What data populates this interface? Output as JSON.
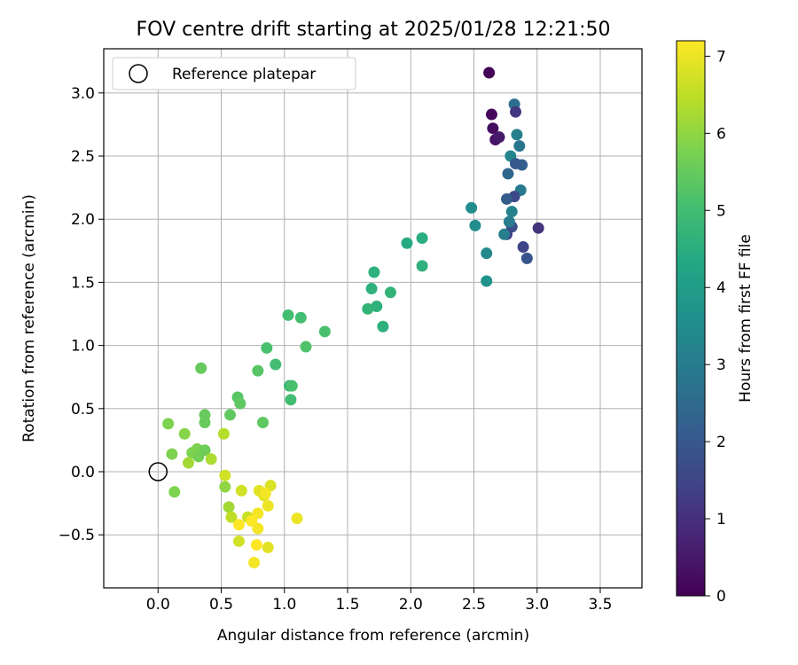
{
  "chart_data": {
    "type": "scatter",
    "title": "FOV centre drift starting at 2025/01/28 12:21:50",
    "xlabel": "Angular distance from reference (arcmin)",
    "ylabel": "Rotation from reference (arcmin)",
    "xlim": [
      -0.43,
      3.83
    ],
    "ylim": [
      -0.92,
      3.35
    ],
    "x_ticks": [
      "0.0",
      "0.5",
      "1.0",
      "1.5",
      "2.0",
      "2.5",
      "3.0",
      "3.5"
    ],
    "y_ticks": [
      "−0.5",
      "0.0",
      "0.5",
      "1.0",
      "1.5",
      "2.0",
      "2.5",
      "3.0"
    ],
    "grid": true,
    "legend": {
      "placement": "top-left",
      "entries": [
        "Reference platepar"
      ]
    },
    "colorbar": {
      "label": "Hours from first FF file",
      "range": [
        0,
        7.2
      ],
      "ticks": [
        "0",
        "1",
        "2",
        "3",
        "4",
        "5",
        "6",
        "7"
      ],
      "colormap": "viridis"
    },
    "reference_point": {
      "x": 0.0,
      "y": 0.0
    },
    "series": [
      {
        "x": [
          2.62,
          2.64,
          2.65,
          2.67,
          2.7,
          2.82,
          2.83,
          2.84,
          2.86,
          2.79,
          2.88,
          2.83,
          2.77,
          2.87,
          2.82,
          2.76,
          2.8,
          2.76,
          2.8,
          2.78,
          2.74,
          3.01,
          2.89,
          2.92,
          2.48,
          2.51,
          2.6,
          2.6,
          1.97,
          2.09,
          2.09,
          1.71,
          1.69,
          1.73,
          1.66,
          1.84,
          1.78,
          1.03,
          1.13,
          1.32,
          0.86,
          1.17,
          0.93,
          1.04,
          1.06,
          1.05,
          0.79,
          0.34,
          0.63,
          0.65,
          0.57,
          0.37,
          0.37,
          0.83,
          0.08,
          0.21,
          0.11,
          0.27,
          0.31,
          0.32,
          0.37,
          0.24,
          0.42,
          0.52,
          0.13,
          0.53,
          0.53,
          0.66,
          0.56,
          0.58,
          0.71,
          0.8,
          0.84,
          0.87,
          0.89,
          0.79,
          0.74,
          0.85,
          1.1,
          0.79,
          0.64,
          0.78,
          0.76,
          0.87,
          0.64
        ],
        "y": [
          3.16,
          2.83,
          2.72,
          2.63,
          2.65,
          2.91,
          2.85,
          2.67,
          2.58,
          2.5,
          2.43,
          2.44,
          2.36,
          2.23,
          2.18,
          2.16,
          1.94,
          1.88,
          2.06,
          1.98,
          1.88,
          1.93,
          1.78,
          1.69,
          2.09,
          1.95,
          1.73,
          1.51,
          1.81,
          1.85,
          1.63,
          1.58,
          1.45,
          1.31,
          1.29,
          1.42,
          1.15,
          1.24,
          1.22,
          1.11,
          0.98,
          0.99,
          0.85,
          0.68,
          0.68,
          0.57,
          0.8,
          0.82,
          0.59,
          0.54,
          0.45,
          0.45,
          0.39,
          0.39,
          0.38,
          0.3,
          0.14,
          0.15,
          0.18,
          0.12,
          0.17,
          0.07,
          0.1,
          0.3,
          -0.16,
          -0.03,
          -0.12,
          -0.15,
          -0.28,
          -0.36,
          -0.36,
          -0.15,
          -0.19,
          -0.27,
          -0.11,
          -0.33,
          -0.39,
          -0.17,
          -0.37,
          -0.45,
          -0.42,
          -0.58,
          -0.72,
          -0.6,
          -0.55
        ],
        "hours": [
          0.05,
          0.15,
          0.25,
          0.35,
          0.5,
          2.6,
          1.2,
          3.1,
          2.8,
          3.3,
          2.2,
          2.0,
          2.4,
          2.9,
          1.6,
          2.1,
          1.7,
          1.3,
          3.2,
          3.0,
          3.1,
          1.1,
          1.5,
          1.9,
          3.5,
          3.5,
          3.4,
          3.7,
          4.4,
          4.5,
          4.6,
          4.6,
          4.6,
          4.6,
          4.7,
          4.7,
          4.6,
          5.0,
          5.0,
          5.1,
          5.1,
          5.2,
          5.0,
          4.9,
          5.1,
          5.0,
          5.3,
          5.5,
          5.3,
          5.4,
          5.4,
          5.5,
          5.5,
          5.4,
          5.8,
          5.9,
          5.8,
          5.8,
          5.8,
          5.7,
          5.6,
          6.2,
          6.3,
          6.4,
          5.8,
          6.7,
          6.0,
          6.7,
          6.2,
          6.5,
          6.6,
          6.9,
          6.9,
          7.0,
          6.8,
          7.1,
          7.2,
          7.1,
          7.0,
          7.1,
          7.2,
          7.2,
          7.1,
          6.9,
          6.7
        ]
      }
    ]
  }
}
